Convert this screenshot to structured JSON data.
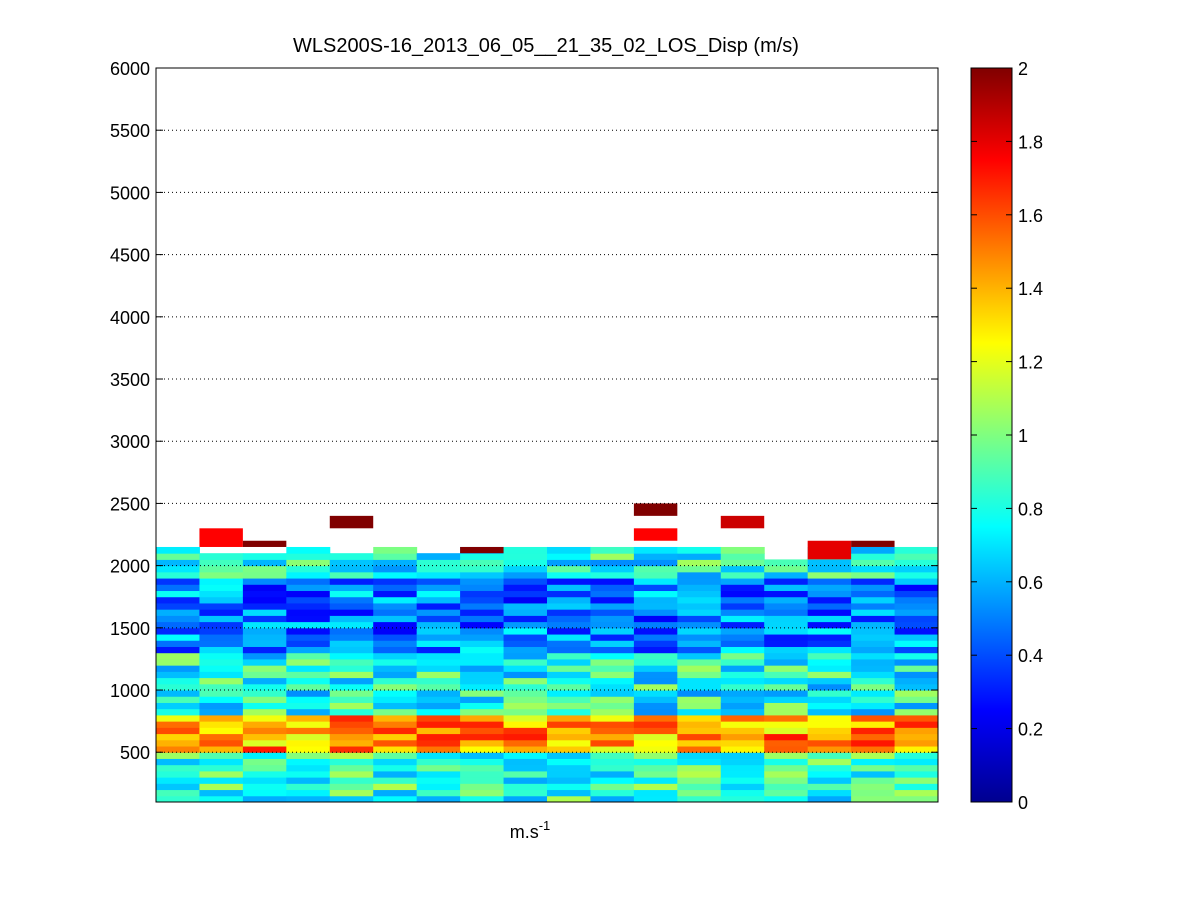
{
  "figure": {
    "title": "WLS200S-16_2013_06_05__21_35_02_LOS_Disp (m/s)",
    "xlabel_base": "m.s",
    "xlabel_sup": "-1"
  },
  "chart_data": {
    "type": "heatmap",
    "title": "WLS200S-16_2013_06_05__21_35_02_LOS_Disp (m/s)",
    "xlabel": "m.s-1",
    "ylabel": "",
    "columns": 18,
    "ylim": [
      100,
      6000
    ],
    "yticks": [
      500,
      1000,
      1500,
      2000,
      2500,
      3000,
      3500,
      4000,
      4500,
      5000,
      5500,
      6000
    ],
    "ytick_labels": [
      "500",
      "1000",
      "1500",
      "2000",
      "2500",
      "3000",
      "3500",
      "4000",
      "4500",
      "5000",
      "5500",
      "6000"
    ],
    "grid": "horizontal dotted",
    "colorbar": {
      "colormap": "jet",
      "range": [
        0,
        2
      ],
      "ticks": [
        0,
        0.2,
        0.4,
        0.6,
        0.8,
        1,
        1.2,
        1.4,
        1.6,
        1.8,
        2
      ],
      "tick_labels": [
        "0",
        "0.2",
        "0.4",
        "0.6",
        "0.8",
        "1",
        "1.2",
        "1.4",
        "1.6",
        "1.8",
        "2"
      ]
    },
    "data_extent": "cells from about 100 m up to about 2200-2450 m; above is empty (no data)",
    "isolated_high_cells": [
      {
        "column": 1,
        "altitude": [
          2150,
          2300
        ],
        "value": 1.75
      },
      {
        "column": 2,
        "altitude": [
          2150,
          2200
        ],
        "value": 2.0
      },
      {
        "column": 4,
        "altitude": [
          2300,
          2400
        ],
        "value": 2.0
      },
      {
        "column": 7,
        "altitude": [
          2100,
          2150
        ],
        "value": 2.0
      },
      {
        "column": 11,
        "altitude": [
          2400,
          2500
        ],
        "value": 2.0
      },
      {
        "column": 11,
        "altitude": [
          2200,
          2300
        ],
        "value": 1.75
      },
      {
        "column": 13,
        "altitude": [
          2300,
          2400
        ],
        "value": 1.85
      },
      {
        "column": 15,
        "altitude": [
          2050,
          2200
        ],
        "value": 1.8
      },
      {
        "column": 16,
        "altitude": [
          2150,
          2200
        ],
        "value": 2.0
      }
    ],
    "profile_summary": [
      {
        "altitude": [
          100,
          500
        ],
        "typical_value": 0.85
      },
      {
        "altitude": [
          500,
          800
        ],
        "typical_value": 1.45
      },
      {
        "altitude": [
          800,
          1300
        ],
        "typical_value": 0.8
      },
      {
        "altitude": [
          1300,
          1900
        ],
        "typical_value": 0.5
      },
      {
        "altitude": [
          1900,
          2150
        ],
        "typical_value": 0.8
      }
    ]
  }
}
